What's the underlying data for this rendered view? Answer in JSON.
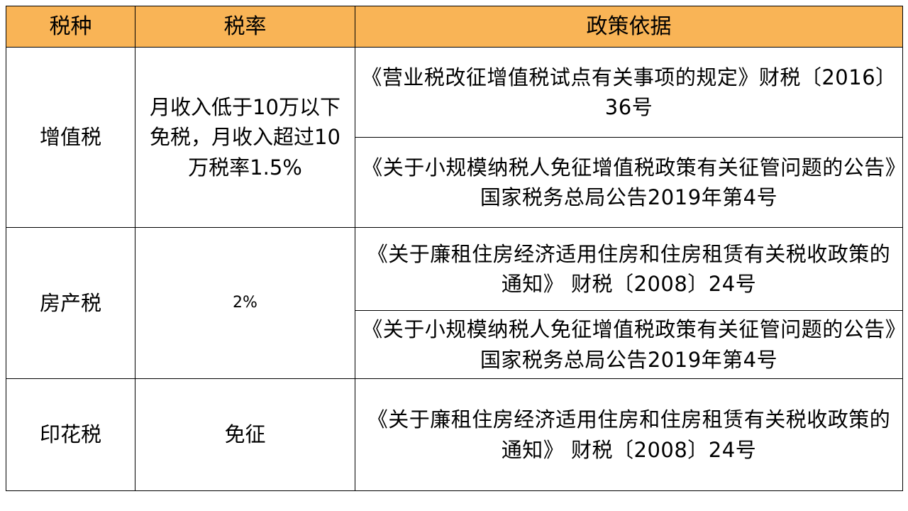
{
  "table": {
    "headers": {
      "tax_type": "税种",
      "rate": "税率",
      "policy": "政策依据"
    },
    "vat": {
      "tax_type": "增值税",
      "rate": "月收入低于10万以下免税，月收入超过10万税率1.5%",
      "policy_1": "《营业税改征增值税试点有关事项的规定》财税〔2016〕36号",
      "policy_2": "《关于小规模纳税人免征增值税政策有关征管问题的公告》国家税务总局公告2019年第4号"
    },
    "property": {
      "tax_type": "房产税",
      "rate": "2%",
      "policy_1": "《关于廉租住房经济适用住房和住房租赁有关税收政策的通知》 财税〔2008〕24号",
      "policy_2": "《关于小规模纳税人免征增值税政策有关征管问题的公告》国家税务总局公告2019年第4号"
    },
    "stamp": {
      "tax_type": "印花税",
      "rate": "免征",
      "policy_1": "《关于廉租住房经济适用住房和住房租赁有关税收政策的通知》 财税〔2008〕24号"
    }
  },
  "colors": {
    "header_bg": "#f9b456",
    "border": "#000000"
  }
}
